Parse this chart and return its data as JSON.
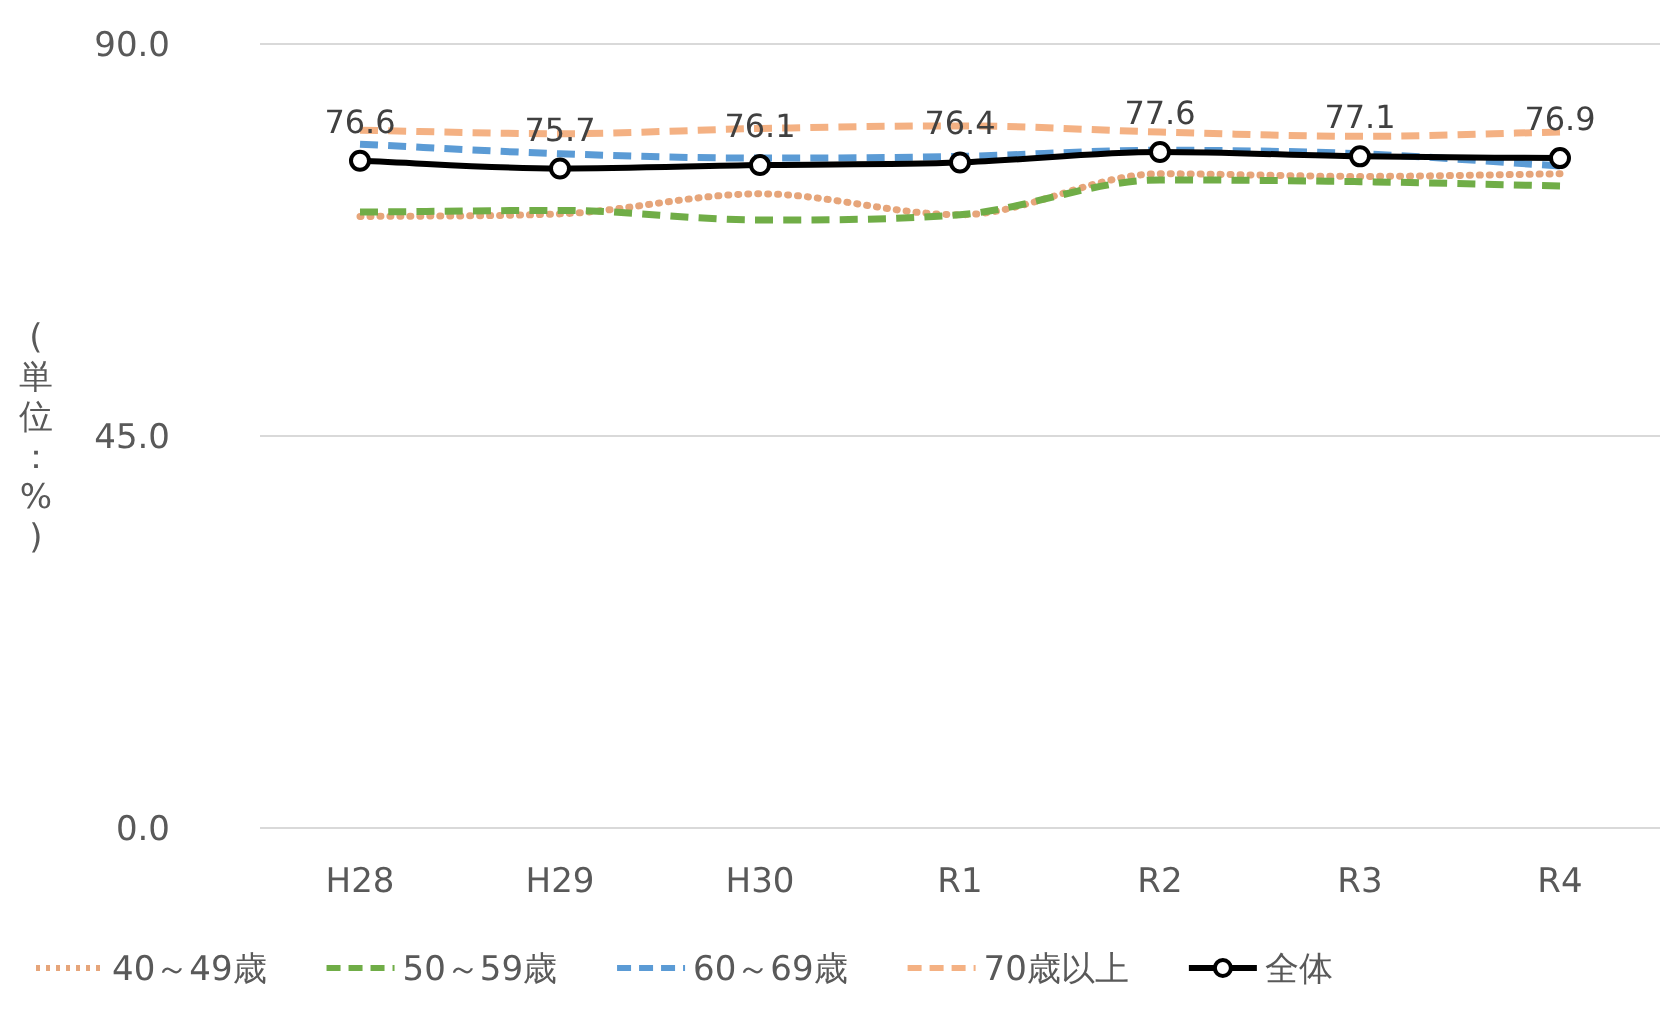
{
  "chart_data": {
    "type": "line",
    "ylabel": "(単位：%)",
    "categories": [
      "H28",
      "H29",
      "H30",
      "R1",
      "R2",
      "R3",
      "R4"
    ],
    "ylim": [
      0,
      90
    ],
    "yticks": [
      {
        "value": 0,
        "label": "0.0"
      },
      {
        "value": 45,
        "label": "45.0"
      },
      {
        "value": 90,
        "label": "90.0"
      }
    ],
    "grid": "y",
    "legend": "bottom",
    "marker": "none",
    "series": [
      {
        "name": "40～49歳",
        "color": "#e6a57a",
        "line_style": "dotted",
        "values": [
          70.2,
          70.5,
          72.8,
          70.4,
          75.1,
          74.8,
          75.1
        ]
      },
      {
        "name": "50～59歳",
        "color": "#70ad47",
        "line_style": "dashed",
        "values": [
          70.7,
          70.9,
          69.8,
          70.4,
          74.4,
          74.2,
          73.7
        ]
      },
      {
        "name": "60～69歳",
        "color": "#5b9bd5",
        "line_style": "dashed",
        "values": [
          78.5,
          77.4,
          76.9,
          77.1,
          77.8,
          77.4,
          76.0
        ]
      },
      {
        "name": "70歳以上",
        "color": "#f4b183",
        "line_style": "dashed",
        "values": [
          80.1,
          79.7,
          80.3,
          80.6,
          79.9,
          79.4,
          79.9
        ]
      },
      {
        "name": "全体",
        "color": "#000000",
        "line_style": "solid",
        "marker": "circle",
        "values": [
          76.6,
          75.7,
          76.1,
          76.4,
          77.6,
          77.1,
          76.9
        ],
        "value_labels": [
          "76.6",
          "75.7",
          "76.1",
          "76.4",
          "77.6",
          "77.1",
          "76.9"
        ]
      }
    ]
  }
}
